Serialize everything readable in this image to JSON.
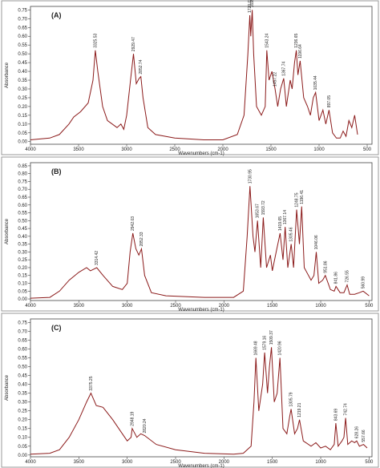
{
  "chart_data": [
    {
      "type": "line",
      "title": "(A)",
      "xlabel": "Wavenumbers (cm-1)",
      "ylabel": "Absorbance",
      "color": "#8b1a1a",
      "xlim": [
        4000,
        450
      ],
      "ylim": [
        -0.015,
        0.77
      ],
      "xticks": [
        4000,
        3500,
        3000,
        2500,
        2000,
        1500,
        1000,
        500
      ],
      "yticks": [
        {
          "value": 0,
          "label": "0.00"
        },
        0.05,
        {
          "value": 0.1,
          "label": "0.10"
        },
        0.15,
        {
          "value": 0.2,
          "label": "0.20"
        },
        0.25,
        {
          "value": 0.3,
          "label": "0.30"
        },
        0.35,
        {
          "value": 0.4,
          "label": "0.40"
        },
        0.45,
        {
          "value": 0.5,
          "label": "0.50"
        },
        0.55,
        {
          "value": 0.6,
          "label": "0.60"
        },
        0.65,
        {
          "value": 0.7,
          "label": "0.70"
        },
        0.75
      ],
      "x": [
        4000,
        3800,
        3700,
        3600,
        3550,
        3480,
        3400,
        3350,
        3325.53,
        3300,
        3250,
        3200,
        3100,
        3060,
        3030,
        3000,
        2960,
        2929.47,
        2900,
        2870,
        2852.74,
        2830,
        2780,
        2700,
        2500,
        2200,
        2000,
        1850,
        1780,
        1740,
        1720.03,
        1710,
        1695.21,
        1680,
        1650,
        1600,
        1560,
        1543.24,
        1520,
        1490,
        1457.22,
        1430,
        1400,
        1367.74,
        1340,
        1300,
        1280,
        1255,
        1236.65,
        1220,
        1196.64,
        1160,
        1120,
        1090,
        1060,
        1035.44,
        1000,
        960,
        930,
        897.05,
        860,
        820,
        780,
        750,
        720,
        690,
        660,
        630,
        600
      ],
      "values": [
        0.01,
        0.02,
        0.04,
        0.1,
        0.14,
        0.17,
        0.22,
        0.35,
        0.52,
        0.4,
        0.2,
        0.12,
        0.08,
        0.1,
        0.07,
        0.15,
        0.35,
        0.5,
        0.33,
        0.36,
        0.37,
        0.25,
        0.08,
        0.04,
        0.02,
        0.01,
        0.01,
        0.04,
        0.15,
        0.5,
        0.72,
        0.6,
        0.75,
        0.5,
        0.2,
        0.15,
        0.2,
        0.52,
        0.35,
        0.4,
        0.3,
        0.2,
        0.3,
        0.36,
        0.2,
        0.35,
        0.3,
        0.45,
        0.52,
        0.38,
        0.46,
        0.25,
        0.2,
        0.15,
        0.25,
        0.28,
        0.12,
        0.18,
        0.1,
        0.18,
        0.05,
        0.02,
        0.02,
        0.06,
        0.03,
        0.12,
        0.08,
        0.15,
        0.04
      ],
      "peaks": [
        3325.53,
        2929.47,
        2852.74,
        1720.03,
        1695.21,
        1543.24,
        1457.22,
        1367.74,
        1236.65,
        1196.64,
        1035.44,
        897.05
      ]
    },
    {
      "type": "line",
      "title": "(B)",
      "xlabel": "Wavenumbers (cm-1)",
      "ylabel": "Absorbance",
      "color": "#8b1a1a",
      "xlim": [
        4000,
        470
      ],
      "ylim": [
        -0.01,
        0.87
      ],
      "xticks": [
        4000,
        3500,
        3000,
        2500,
        2000,
        1500,
        1000,
        500
      ],
      "yticks": [
        {
          "value": 0,
          "label": "0.00"
        },
        0.05,
        {
          "value": 0.1,
          "label": "0.10"
        },
        0.15,
        {
          "value": 0.2,
          "label": "0.20"
        },
        0.25,
        {
          "value": 0.3,
          "label": "0.30"
        },
        0.35,
        {
          "value": 0.4,
          "label": "0.40"
        },
        0.45,
        {
          "value": 0.5,
          "label": "0.50"
        },
        0.55,
        {
          "value": 0.6,
          "label": "0.60"
        },
        0.65,
        {
          "value": 0.7,
          "label": "0.70"
        },
        0.75,
        {
          "value": 0.8,
          "label": "0.80"
        },
        0.85
      ],
      "x": [
        4000,
        3800,
        3700,
        3600,
        3500,
        3420,
        3380,
        3314.42,
        3250,
        3150,
        3050,
        3000,
        2970,
        2942.03,
        2910,
        2880,
        2852.33,
        2820,
        2750,
        2600,
        2200,
        1900,
        1800,
        1760,
        1730.95,
        1700,
        1680,
        1653.67,
        1620,
        1593.72,
        1560,
        1520,
        1500,
        1460,
        1419.65,
        1390,
        1367.14,
        1340,
        1305.46,
        1280,
        1248.75,
        1220,
        1196.41,
        1170,
        1100,
        1070,
        1046.06,
        1020,
        980,
        951.86,
        900,
        860,
        841.86,
        800,
        760,
        726.55,
        700,
        650,
        600,
        560.99,
        500
      ],
      "values": [
        0.005,
        0.01,
        0.05,
        0.12,
        0.17,
        0.2,
        0.18,
        0.2,
        0.15,
        0.08,
        0.06,
        0.1,
        0.3,
        0.42,
        0.32,
        0.28,
        0.32,
        0.15,
        0.04,
        0.02,
        0.01,
        0.01,
        0.05,
        0.4,
        0.72,
        0.4,
        0.3,
        0.5,
        0.2,
        0.52,
        0.2,
        0.28,
        0.18,
        0.3,
        0.42,
        0.25,
        0.46,
        0.2,
        0.35,
        0.2,
        0.57,
        0.35,
        0.59,
        0.2,
        0.12,
        0.15,
        0.3,
        0.1,
        0.12,
        0.15,
        0.06,
        0.05,
        0.08,
        0.04,
        0.04,
        0.09,
        0.03,
        0.03,
        0.04,
        0.05,
        0.02
      ],
      "peaks": [
        3314.42,
        2942.03,
        2852.33,
        1730.95,
        1653.67,
        1593.72,
        1419.65,
        1367.14,
        1305.46,
        1248.75,
        1196.41,
        1046.06,
        951.86,
        841.86,
        726.55,
        560.99
      ]
    },
    {
      "type": "line",
      "title": "(C)",
      "xlabel": "Wavenumbers (cm-1)",
      "ylabel": "Absorbance",
      "color": "#8b1a1a",
      "xlim": [
        4000,
        470
      ],
      "ylim": [
        -0.01,
        0.77
      ],
      "xticks": [
        4000,
        3500,
        3000,
        2500,
        2000,
        1500,
        1000,
        500
      ],
      "yticks": [
        {
          "value": 0,
          "label": "0.00"
        },
        0.05,
        {
          "value": 0.1,
          "label": "0.10"
        },
        0.15,
        {
          "value": 0.2,
          "label": "0.20"
        },
        0.25,
        {
          "value": 0.3,
          "label": "0.30"
        },
        0.35,
        {
          "value": 0.4,
          "label": "0.40"
        },
        0.45,
        {
          "value": 0.5,
          "label": "0.50"
        },
        0.55,
        {
          "value": 0.6,
          "label": "0.60"
        },
        0.65,
        {
          "value": 0.7,
          "label": "0.70"
        },
        0.75
      ],
      "x": [
        4000,
        3800,
        3700,
        3600,
        3500,
        3420,
        3375.25,
        3320,
        3250,
        3150,
        3050,
        3000,
        2960,
        2948.19,
        2900,
        2860,
        2820.24,
        2700,
        2500,
        2200,
        1900,
        1800,
        1720,
        1690,
        1669.48,
        1640,
        1600,
        1579.16,
        1550,
        1530,
        1509.37,
        1480,
        1450,
        1420.96,
        1390,
        1350,
        1320,
        1305.79,
        1270,
        1240,
        1219.21,
        1180,
        1100,
        1050,
        1000,
        950,
        900,
        860,
        843.69,
        820,
        780,
        760,
        742.74,
        720,
        680,
        650,
        628.26,
        600,
        557.66,
        520
      ],
      "values": [
        0.005,
        0.01,
        0.03,
        0.1,
        0.2,
        0.3,
        0.35,
        0.28,
        0.27,
        0.2,
        0.12,
        0.08,
        0.1,
        0.15,
        0.1,
        0.12,
        0.11,
        0.06,
        0.03,
        0.01,
        0.005,
        0.01,
        0.05,
        0.3,
        0.55,
        0.25,
        0.4,
        0.58,
        0.35,
        0.5,
        0.61,
        0.3,
        0.35,
        0.55,
        0.15,
        0.12,
        0.22,
        0.26,
        0.12,
        0.15,
        0.2,
        0.08,
        0.05,
        0.07,
        0.04,
        0.05,
        0.03,
        0.06,
        0.18,
        0.05,
        0.08,
        0.1,
        0.21,
        0.06,
        0.08,
        0.07,
        0.08,
        0.05,
        0.06,
        0.04
      ],
      "peaks": [
        3375.25,
        2948.19,
        2820.24,
        1669.48,
        1579.16,
        1509.37,
        1420.96,
        1305.79,
        1219.21,
        843.69,
        742.74,
        628.26,
        557.66
      ]
    }
  ]
}
